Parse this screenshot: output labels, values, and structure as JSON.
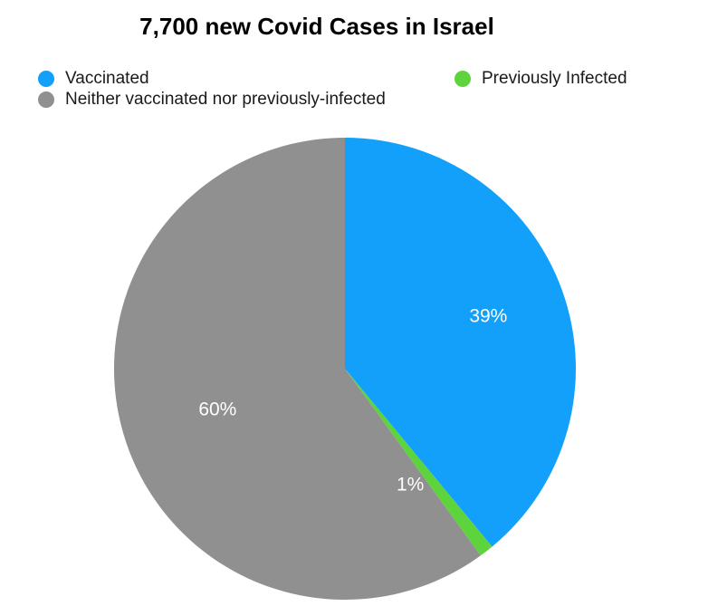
{
  "chart_data": {
    "type": "pie",
    "title": "7,700 new Covid Cases in Israel",
    "slices": [
      {
        "name": "Vaccinated",
        "value": 39,
        "label": "39%",
        "color": "#12a0fb"
      },
      {
        "name": "Previously Infected",
        "value": 1,
        "label": "1%",
        "color": "#5ed43c"
      },
      {
        "name": "Neither vaccinated nor previously-infected",
        "value": 60,
        "label": "60%",
        "color": "#909090"
      }
    ],
    "legend_position": "top",
    "start_angle": "12 o'clock",
    "direction": "clockwise"
  }
}
